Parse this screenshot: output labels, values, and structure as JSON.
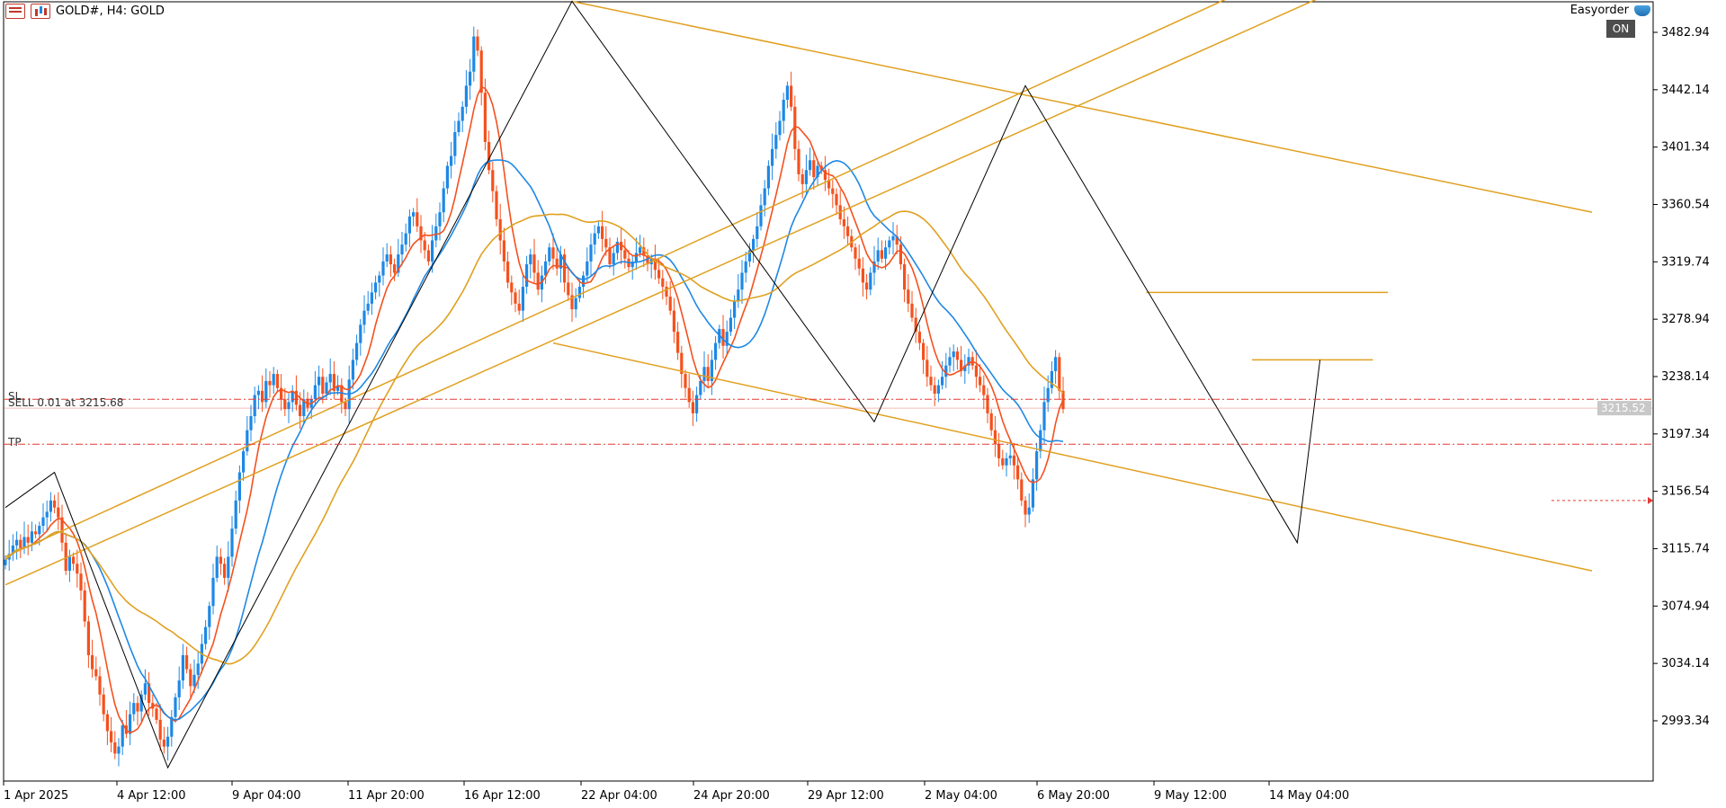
{
  "window": {
    "symbol_title": "GOLD#, H4:  GOLD",
    "expert_name": "Easyorder",
    "ea_status": "ON",
    "menu_icon": "menu-icon",
    "chart_icon": "chart-icon",
    "ea_icon": "graduation-cap-icon"
  },
  "orders": {
    "sl_label": "SL",
    "sell_label": "SELL 0.01 at 3215.68",
    "tp_label": "TP",
    "price_badge": "3215.52"
  },
  "colors": {
    "bull": "#1e88e5",
    "bear": "#f4511e",
    "ma_fast": "#f4511e",
    "ma_mid": "#1e88e5",
    "ma_slow": "#e0a020",
    "channel": "#e0a020",
    "zigzag": "#000000",
    "order_line": "#e53935"
  },
  "chart_data": {
    "type": "candlestick",
    "y_axis_ticks": [
      "3482.94",
      "3442.14",
      "3401.34",
      "3360.54",
      "3319.74",
      "3278.94",
      "3238.14",
      "3197.34",
      "3156.54",
      "3115.74",
      "3074.94",
      "3034.14",
      "2993.34"
    ],
    "x_axis_ticks": [
      "1 Apr 2025",
      "4 Apr 12:00",
      "9 Apr 04:00",
      "11 Apr 20:00",
      "16 Apr 12:00",
      "22 Apr 04:00",
      "24 Apr 20:00",
      "29 Apr 12:00",
      "2 May 04:00",
      "6 May 20:00",
      "9 May 12:00",
      "14 May 04:00"
    ],
    "ylim": [
      2960,
      3505
    ],
    "order_levels": {
      "sl": 3222,
      "sell": 3215.68,
      "tp": 3190
    },
    "zigzag": [
      [
        0,
        3145
      ],
      [
        13,
        3170
      ],
      [
        43,
        2960
      ],
      [
        150,
        3505
      ],
      [
        230,
        3206
      ],
      [
        270,
        3445
      ],
      [
        342,
        3120
      ],
      [
        348,
        3250
      ]
    ],
    "channel_lines": [
      {
        "from": [
          150,
          3505
        ],
        "to": [
          420,
          3355
        ]
      },
      {
        "from": [
          145,
          3262
        ],
        "to": [
          420,
          3100
        ]
      },
      {
        "from": [
          0,
          3110
        ],
        "to": [
          330,
          3515
        ]
      },
      {
        "from": [
          0,
          3090
        ],
        "to": [
          350,
          3510
        ]
      },
      {
        "from": [
          302,
          3298
        ],
        "to": [
          366,
          3298
        ]
      },
      {
        "from": [
          330,
          3250
        ],
        "to": [
          362,
          3250
        ]
      }
    ],
    "closes": [
      3108,
      3112,
      3118,
      3122,
      3116,
      3124,
      3120,
      3128,
      3126,
      3132,
      3138,
      3142,
      3150,
      3145,
      3138,
      3120,
      3100,
      3110,
      3105,
      3098,
      3086,
      3064,
      3040,
      3030,
      3025,
      3012,
      2998,
      2986,
      2978,
      2970,
      2975,
      2990,
      2984,
      2998,
      3006,
      3000,
      3012,
      3020,
      3006,
      3002,
      2994,
      2980,
      2975,
      2982,
      2996,
      3010,
      3022,
      3040,
      3030,
      3018,
      3026,
      3034,
      3048,
      3060,
      3075,
      3095,
      3110,
      3105,
      3095,
      3110,
      3130,
      3150,
      3170,
      3185,
      3200,
      3210,
      3225,
      3228,
      3220,
      3235,
      3232,
      3240,
      3230,
      3222,
      3215,
      3220,
      3228,
      3218,
      3210,
      3222,
      3216,
      3222,
      3232,
      3238,
      3226,
      3234,
      3240,
      3228,
      3232,
      3220,
      3215,
      3236,
      3250,
      3262,
      3275,
      3285,
      3290,
      3298,
      3305,
      3310,
      3320,
      3325,
      3318,
      3312,
      3325,
      3332,
      3340,
      3352,
      3355,
      3345,
      3335,
      3328,
      3320,
      3335,
      3345,
      3355,
      3372,
      3388,
      3395,
      3412,
      3420,
      3430,
      3445,
      3455,
      3480,
      3470,
      3440,
      3405,
      3385,
      3370,
      3350,
      3335,
      3320,
      3305,
      3298,
      3290,
      3285,
      3302,
      3318,
      3325,
      3312,
      3300,
      3310,
      3320,
      3330,
      3322,
      3315,
      3325,
      3305,
      3296,
      3286,
      3294,
      3302,
      3310,
      3320,
      3332,
      3340,
      3345,
      3336,
      3330,
      3318,
      3326,
      3334,
      3328,
      3322,
      3316,
      3320,
      3326,
      3330,
      3324,
      3318,
      3322,
      3314,
      3308,
      3302,
      3295,
      3285,
      3270,
      3255,
      3240,
      3230,
      3220,
      3212,
      3225,
      3235,
      3245,
      3235,
      3250,
      3262,
      3272,
      3260,
      3270,
      3280,
      3292,
      3300,
      3312,
      3320,
      3328,
      3336,
      3345,
      3360,
      3372,
      3388,
      3400,
      3410,
      3420,
      3435,
      3445,
      3430,
      3400,
      3382,
      3375,
      3385,
      3392,
      3380,
      3388,
      3385,
      3378,
      3372,
      3368,
      3360,
      3350,
      3345,
      3338,
      3330,
      3322,
      3315,
      3305,
      3300,
      3312,
      3320,
      3328,
      3322,
      3330,
      3335,
      3338,
      3332,
      3318,
      3300,
      3290,
      3280,
      3270,
      3262,
      3250,
      3238,
      3232,
      3226,
      3232,
      3238,
      3246,
      3252,
      3256,
      3250,
      3242,
      3246,
      3252,
      3246,
      3238,
      3232,
      3225,
      3212,
      3200,
      3190,
      3180,
      3175,
      3180,
      3182,
      3175,
      3165,
      3150,
      3140,
      3145,
      3165,
      3185,
      3200,
      3220,
      3230,
      3242,
      3252,
      3228,
      3215
    ]
  }
}
